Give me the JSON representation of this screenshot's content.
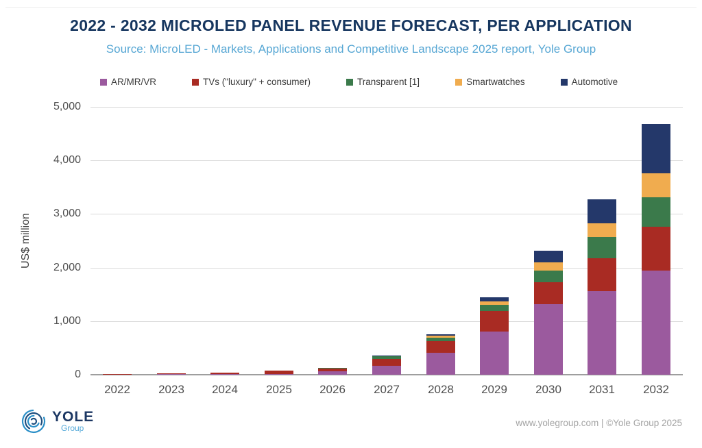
{
  "header": {
    "title": "2022 - 2032 MICROLED PANEL REVENUE FORECAST, PER APPLICATION",
    "subtitle": "Source: MicroLED - Markets, Applications and Competitive Landscape 2025 report, Yole Group"
  },
  "chart_data": {
    "type": "bar",
    "stacked": true,
    "title": "2022 - 2032 MicroLED panel revenue forecast, per application",
    "xlabel": "",
    "ylabel": "US$ million",
    "ylim": [
      0,
      5000
    ],
    "ytick_step": 1000,
    "grid": true,
    "legend_position": "top",
    "categories": [
      "2022",
      "2023",
      "2024",
      "2025",
      "2026",
      "2027",
      "2028",
      "2029",
      "2030",
      "2031",
      "2032"
    ],
    "series": [
      {
        "name": "AR/MR/VR",
        "color": "#9b5a9e",
        "values": [
          5,
          8,
          10,
          15,
          65,
          165,
          410,
          800,
          1320,
          1560,
          1950
        ]
      },
      {
        "name": "TVs (\"luxury\" + consumer)",
        "color": "#a92b23",
        "values": [
          10,
          20,
          25,
          60,
          48,
          125,
          220,
          390,
          400,
          620,
          810
        ]
      },
      {
        "name": "Transparent [1]",
        "color": "#3b7a4b",
        "values": [
          0,
          0,
          0,
          0,
          3,
          50,
          65,
          110,
          225,
          390,
          550
        ]
      },
      {
        "name": "Smartwatches",
        "color": "#f0ac4f",
        "values": [
          0,
          0,
          0,
          0,
          0,
          10,
          35,
          65,
          150,
          250,
          450
        ]
      },
      {
        "name": "Automotive",
        "color": "#24386a",
        "values": [
          0,
          0,
          0,
          0,
          0,
          5,
          30,
          85,
          220,
          460,
          920
        ]
      }
    ],
    "totals": [
      15,
      28,
      35,
      75,
      116,
      355,
      760,
      1450,
      2315,
      3280,
      4680
    ]
  },
  "footer": {
    "logo_text": "YOLE",
    "logo_subtext": "Group",
    "credit": "www.yolegroup.com | ©Yole Group 2025"
  }
}
